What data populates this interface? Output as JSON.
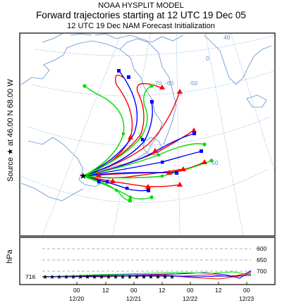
{
  "header": {
    "model_title": "NOAA HYSPLIT MODEL",
    "run_title": "Forward trajectories starting at 12 UTC 19 Dec 05",
    "run_subtitle": "12 UTC 19 Dec     NAM  Forecast Initialization"
  },
  "map": {
    "source_label": "Source ★ at  46.00 N   68.00 W",
    "lat_labels": [
      "40",
      "50"
    ],
    "lon_labels": [
      "-70",
      "-60",
      "-50",
      "0"
    ],
    "colors": {
      "frame": "#000000",
      "coast": "#5a8fd0",
      "grid": "#7aa7dd"
    }
  },
  "vertical": {
    "axis_label": "hPa",
    "start_level": "716",
    "pressure_ticks": [
      "600",
      "650",
      "700"
    ],
    "time_ticks": [
      "00",
      "12",
      "00",
      "12",
      "00",
      "12",
      "00"
    ],
    "date_ticks": [
      "12/20",
      "12/21",
      "12/22",
      "12/23"
    ]
  },
  "series_colors": [
    "#ff0000",
    "#0000ff",
    "#00dd00"
  ]
}
